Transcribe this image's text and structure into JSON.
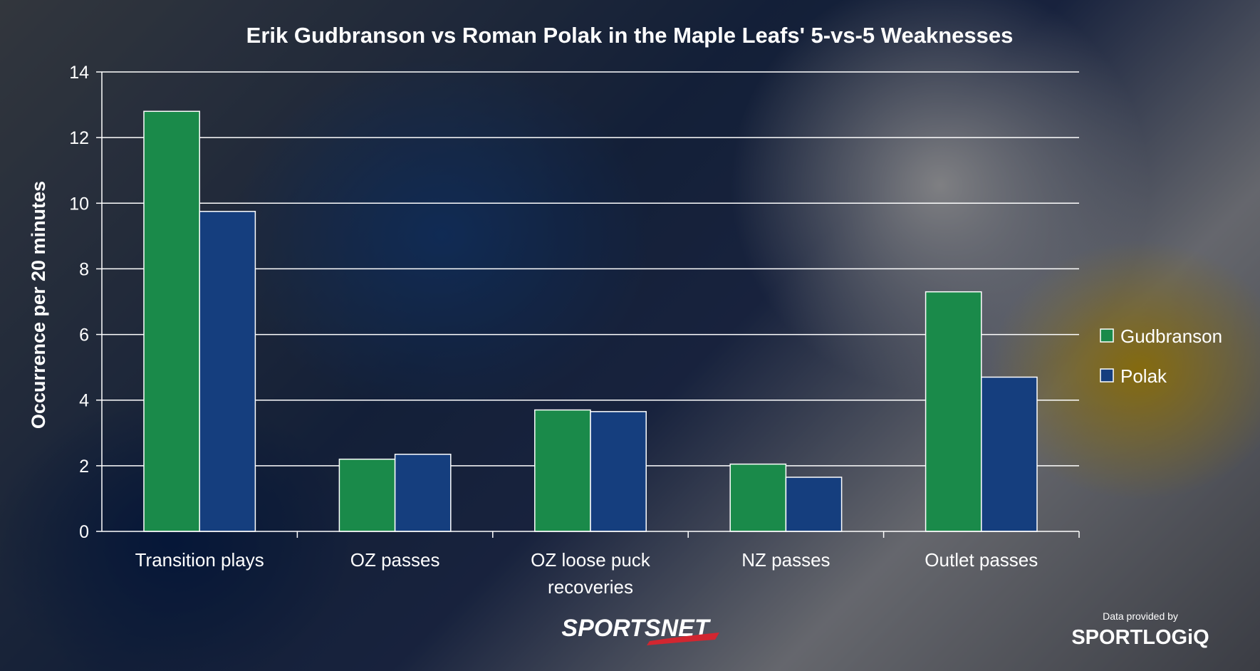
{
  "chart_data": {
    "type": "bar",
    "title": "Erik Gudbranson vs Roman Polak in the Maple Leafs' 5-vs-5 Weaknesses",
    "ylabel": "Occurrence per 20 minutes",
    "xlabel": "",
    "ylim": [
      0,
      14
    ],
    "yticks": [
      0,
      2,
      4,
      6,
      8,
      10,
      12,
      14
    ],
    "categories": [
      [
        "Transition plays"
      ],
      [
        "OZ passes"
      ],
      [
        "OZ loose puck",
        "recoveries"
      ],
      [
        "NZ passes"
      ],
      [
        "Outlet passes"
      ]
    ],
    "series": [
      {
        "name": "Gudbranson",
        "color": "#1a8a4a",
        "values": [
          12.8,
          2.2,
          3.7,
          2.05,
          7.3
        ]
      },
      {
        "name": "Polak",
        "color": "#153e7e",
        "values": [
          9.75,
          2.35,
          3.65,
          1.65,
          4.7
        ]
      }
    ],
    "grid": true,
    "legend_position": "right"
  },
  "credits": {
    "broadcaster": "SPORTSNET",
    "data_note": "Data provided by",
    "data_provider": "SPORTLOGiQ"
  }
}
